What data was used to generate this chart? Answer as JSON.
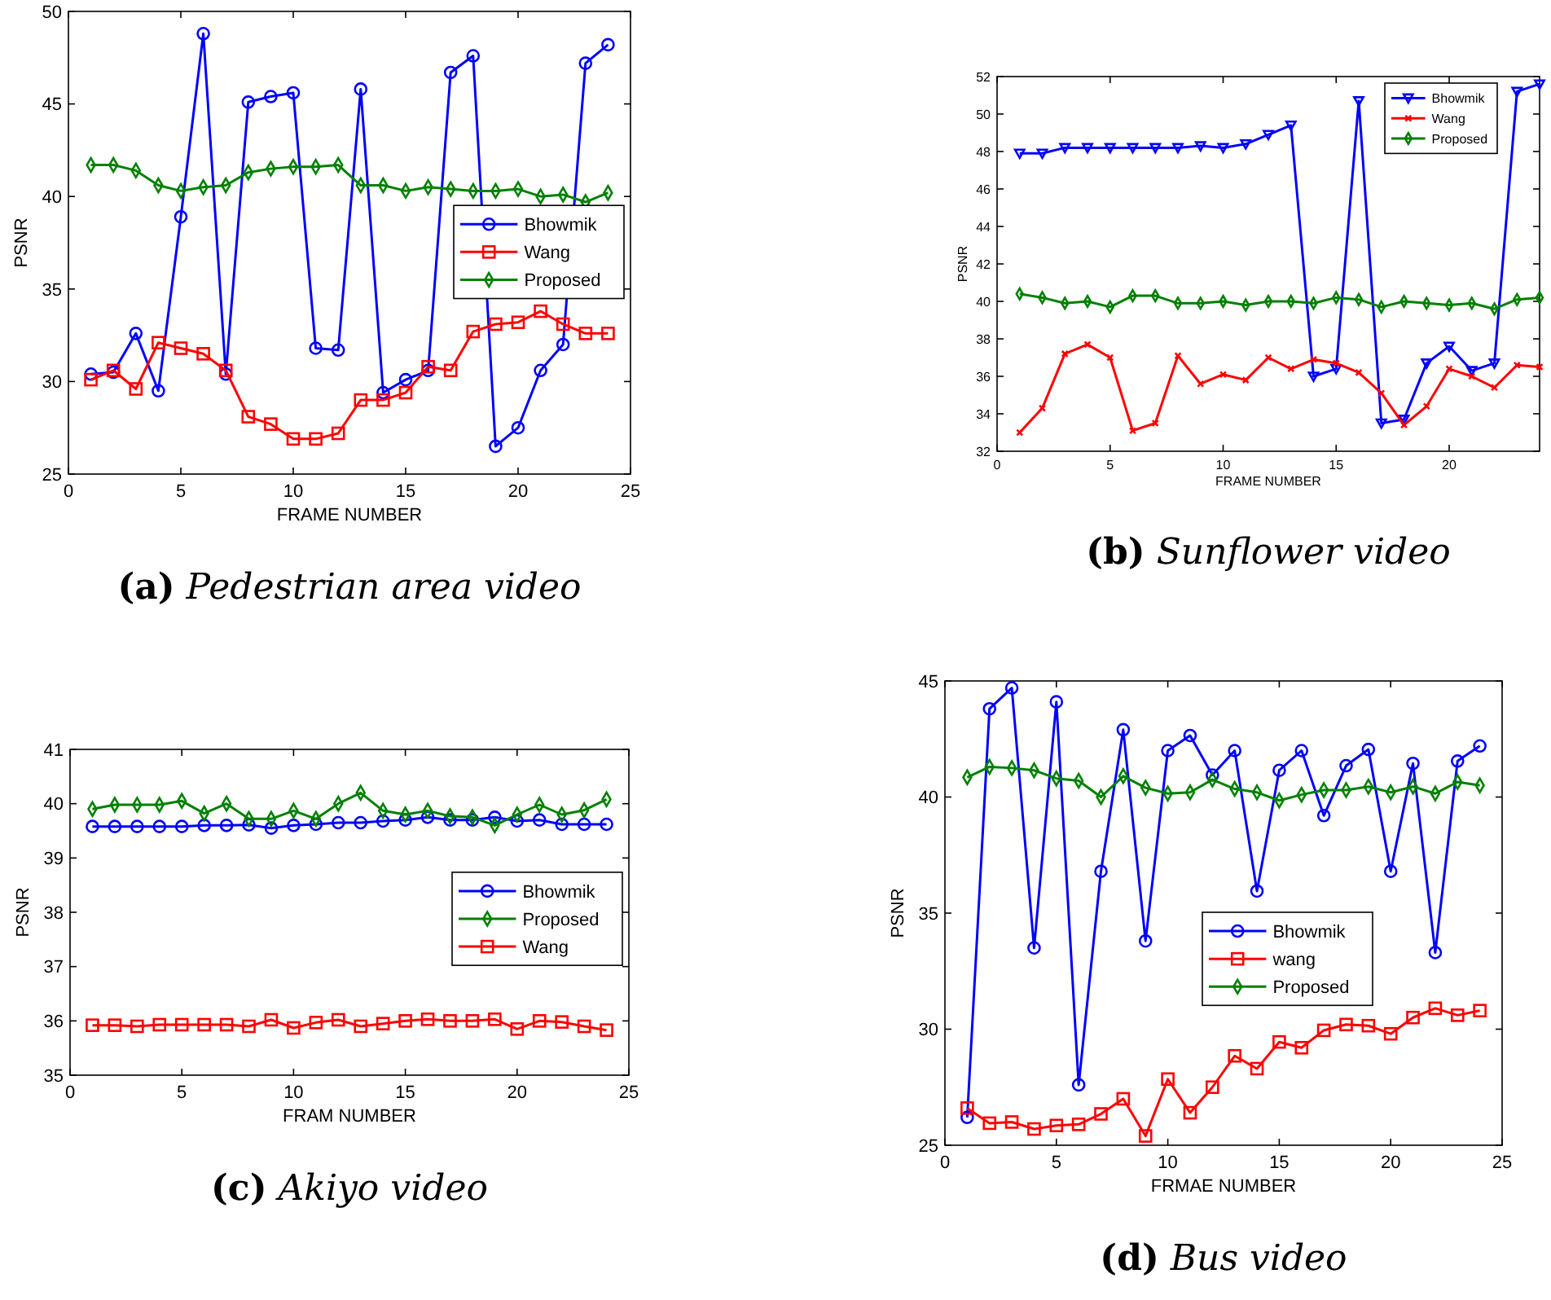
{
  "chart_data": [
    {
      "type": "line",
      "title": "(a) Pedestrian area video",
      "xlabel": "FRAME NUMBER",
      "ylabel": "PSNR",
      "x": [
        1,
        2,
        3,
        4,
        5,
        6,
        7,
        8,
        9,
        10,
        11,
        12,
        13,
        14,
        15,
        16,
        17,
        18,
        19,
        20,
        21,
        22,
        23,
        24
      ],
      "xlim": [
        0,
        25
      ],
      "xticks": [
        0,
        5,
        10,
        15,
        20,
        25
      ],
      "ylim": [
        25,
        50
      ],
      "yticks": [
        25,
        30,
        35,
        40,
        45,
        50
      ],
      "legend": "right",
      "series": [
        {
          "name": "Bhowmik",
          "color": "#0000ff",
          "marker": "circle",
          "values": [
            30.4,
            30.5,
            32.6,
            29.5,
            38.9,
            48.8,
            30.4,
            45.1,
            45.4,
            45.6,
            31.8,
            31.7,
            45.8,
            29.4,
            30.1,
            30.6,
            46.7,
            47.6,
            26.5,
            27.5,
            30.6,
            32.0,
            47.2,
            48.2
          ]
        },
        {
          "name": "Wang",
          "color": "#ff0000",
          "marker": "square",
          "values": [
            30.1,
            30.6,
            29.6,
            32.1,
            31.8,
            31.5,
            30.6,
            28.1,
            27.7,
            26.9,
            26.9,
            27.2,
            29.0,
            29.0,
            29.4,
            30.8,
            30.6,
            32.7,
            33.1,
            33.2,
            33.8,
            33.1,
            32.6,
            32.6
          ]
        },
        {
          "name": "Proposed",
          "color": "#008000",
          "marker": "diamond",
          "values": [
            41.7,
            41.7,
            41.4,
            40.6,
            40.3,
            40.5,
            40.6,
            41.3,
            41.5,
            41.6,
            41.6,
            41.7,
            40.6,
            40.6,
            40.3,
            40.5,
            40.4,
            40.3,
            40.3,
            40.4,
            40.0,
            40.1,
            39.7,
            40.2
          ]
        }
      ]
    },
    {
      "type": "line",
      "title": "(b) Sunflower video",
      "xlabel": "FRAME NUMBER",
      "ylabel": "PSNR",
      "x": [
        1,
        2,
        3,
        4,
        5,
        6,
        7,
        8,
        9,
        10,
        11,
        12,
        13,
        14,
        15,
        16,
        17,
        18,
        19,
        20,
        21,
        22,
        23,
        24
      ],
      "xlim": [
        0,
        24
      ],
      "xticks": [
        0,
        5,
        10,
        15,
        20
      ],
      "ylim": [
        32,
        52
      ],
      "yticks": [
        32,
        34,
        36,
        38,
        40,
        42,
        44,
        46,
        48,
        50,
        52
      ],
      "legend": "top right",
      "series": [
        {
          "name": "Bhowmik",
          "color": "#0000ff",
          "marker": "triangle",
          "values": [
            47.9,
            47.9,
            48.2,
            48.2,
            48.2,
            48.2,
            48.2,
            48.2,
            48.3,
            48.2,
            48.4,
            48.9,
            49.4,
            36.0,
            36.4,
            50.7,
            33.5,
            33.7,
            36.7,
            37.6,
            36.3,
            36.7,
            51.2,
            51.6
          ]
        },
        {
          "name": "Wang",
          "color": "#ff0000",
          "marker": "cross",
          "values": [
            33.0,
            34.3,
            37.2,
            37.7,
            37.0,
            33.1,
            33.5,
            37.1,
            35.6,
            36.1,
            35.8,
            37.0,
            36.4,
            36.9,
            36.7,
            36.2,
            35.1,
            33.4,
            34.4,
            36.4,
            36.0,
            35.4,
            36.6,
            36.5
          ]
        },
        {
          "name": "Proposed",
          "color": "#008000",
          "marker": "diamond",
          "values": [
            40.4,
            40.2,
            39.9,
            40.0,
            39.7,
            40.3,
            40.3,
            39.9,
            39.9,
            40.0,
            39.8,
            40.0,
            40.0,
            39.9,
            40.2,
            40.1,
            39.7,
            40.0,
            39.9,
            39.8,
            39.9,
            39.6,
            40.1,
            40.2
          ]
        }
      ]
    },
    {
      "type": "line",
      "title": "(c) Akiyo video",
      "xlabel": "FRAM NUMBER",
      "ylabel": "PSNR",
      "x": [
        1,
        2,
        3,
        4,
        5,
        6,
        7,
        8,
        9,
        10,
        11,
        12,
        13,
        14,
        15,
        16,
        17,
        18,
        19,
        20,
        21,
        22,
        23,
        24
      ],
      "xlim": [
        0,
        25
      ],
      "xticks": [
        0,
        5,
        10,
        15,
        20,
        25
      ],
      "ylim": [
        35,
        41
      ],
      "yticks": [
        35,
        36,
        37,
        38,
        39,
        40,
        41
      ],
      "legend": "right",
      "series": [
        {
          "name": "Bhowmik",
          "color": "#0000ff",
          "marker": "circle",
          "values": [
            39.58,
            39.58,
            39.58,
            39.58,
            39.58,
            39.6,
            39.6,
            39.61,
            39.55,
            39.6,
            39.62,
            39.65,
            39.65,
            39.68,
            39.7,
            39.75,
            39.7,
            39.7,
            39.75,
            39.68,
            39.7,
            39.62,
            39.62,
            39.62
          ]
        },
        {
          "name": "Proposed",
          "color": "#008000",
          "marker": "diamond",
          "values": [
            39.9,
            39.98,
            39.98,
            39.98,
            40.05,
            39.82,
            40.0,
            39.72,
            39.72,
            39.87,
            39.72,
            40.0,
            40.2,
            39.87,
            39.8,
            39.87,
            39.77,
            39.75,
            39.6,
            39.8,
            39.98,
            39.8,
            39.88,
            40.08
          ]
        },
        {
          "name": "Wang",
          "color": "#ff0000",
          "marker": "square",
          "values": [
            35.92,
            35.92,
            35.9,
            35.93,
            35.93,
            35.93,
            35.93,
            35.9,
            36.02,
            35.87,
            35.97,
            36.02,
            35.9,
            35.95,
            36.0,
            36.03,
            36.0,
            36.0,
            36.03,
            35.85,
            36.0,
            35.98,
            35.9,
            35.83
          ]
        }
      ]
    },
    {
      "type": "line",
      "title": "(d) Bus video",
      "xlabel": "FRMAE NUMBER",
      "ylabel": "PSNR",
      "x": [
        1,
        2,
        3,
        4,
        5,
        6,
        7,
        8,
        9,
        10,
        11,
        12,
        13,
        14,
        15,
        16,
        17,
        18,
        19,
        20,
        21,
        22,
        23,
        24
      ],
      "xlim": [
        0,
        25
      ],
      "xticks": [
        0,
        5,
        10,
        15,
        20,
        25
      ],
      "ylim": [
        25,
        45
      ],
      "yticks": [
        25,
        30,
        35,
        40,
        45
      ],
      "legend": "right",
      "series": [
        {
          "name": "Bhowmik",
          "color": "#0000ff",
          "marker": "circle",
          "values": [
            26.2,
            43.8,
            44.7,
            33.5,
            44.1,
            27.6,
            36.8,
            42.9,
            33.8,
            42.0,
            42.65,
            40.95,
            42.0,
            35.95,
            41.15,
            42.0,
            39.2,
            41.35,
            42.05,
            36.8,
            41.45,
            33.3,
            41.55,
            42.2
          ]
        },
        {
          "name": "wang",
          "color": "#ff0000",
          "marker": "square",
          "values": [
            26.6,
            25.95,
            26.0,
            25.7,
            25.85,
            25.9,
            26.35,
            27.0,
            25.4,
            27.85,
            26.4,
            27.5,
            28.85,
            28.3,
            29.45,
            29.2,
            29.95,
            30.2,
            30.15,
            29.8,
            30.5,
            30.9,
            30.6,
            30.8
          ]
        },
        {
          "name": "Proposed",
          "color": "#008000",
          "marker": "diamond",
          "values": [
            40.85,
            41.3,
            41.25,
            41.15,
            40.8,
            40.7,
            40.0,
            40.9,
            40.4,
            40.15,
            40.2,
            40.75,
            40.35,
            40.2,
            39.85,
            40.1,
            40.3,
            40.3,
            40.45,
            40.2,
            40.45,
            40.15,
            40.65,
            40.5
          ]
        }
      ]
    }
  ]
}
